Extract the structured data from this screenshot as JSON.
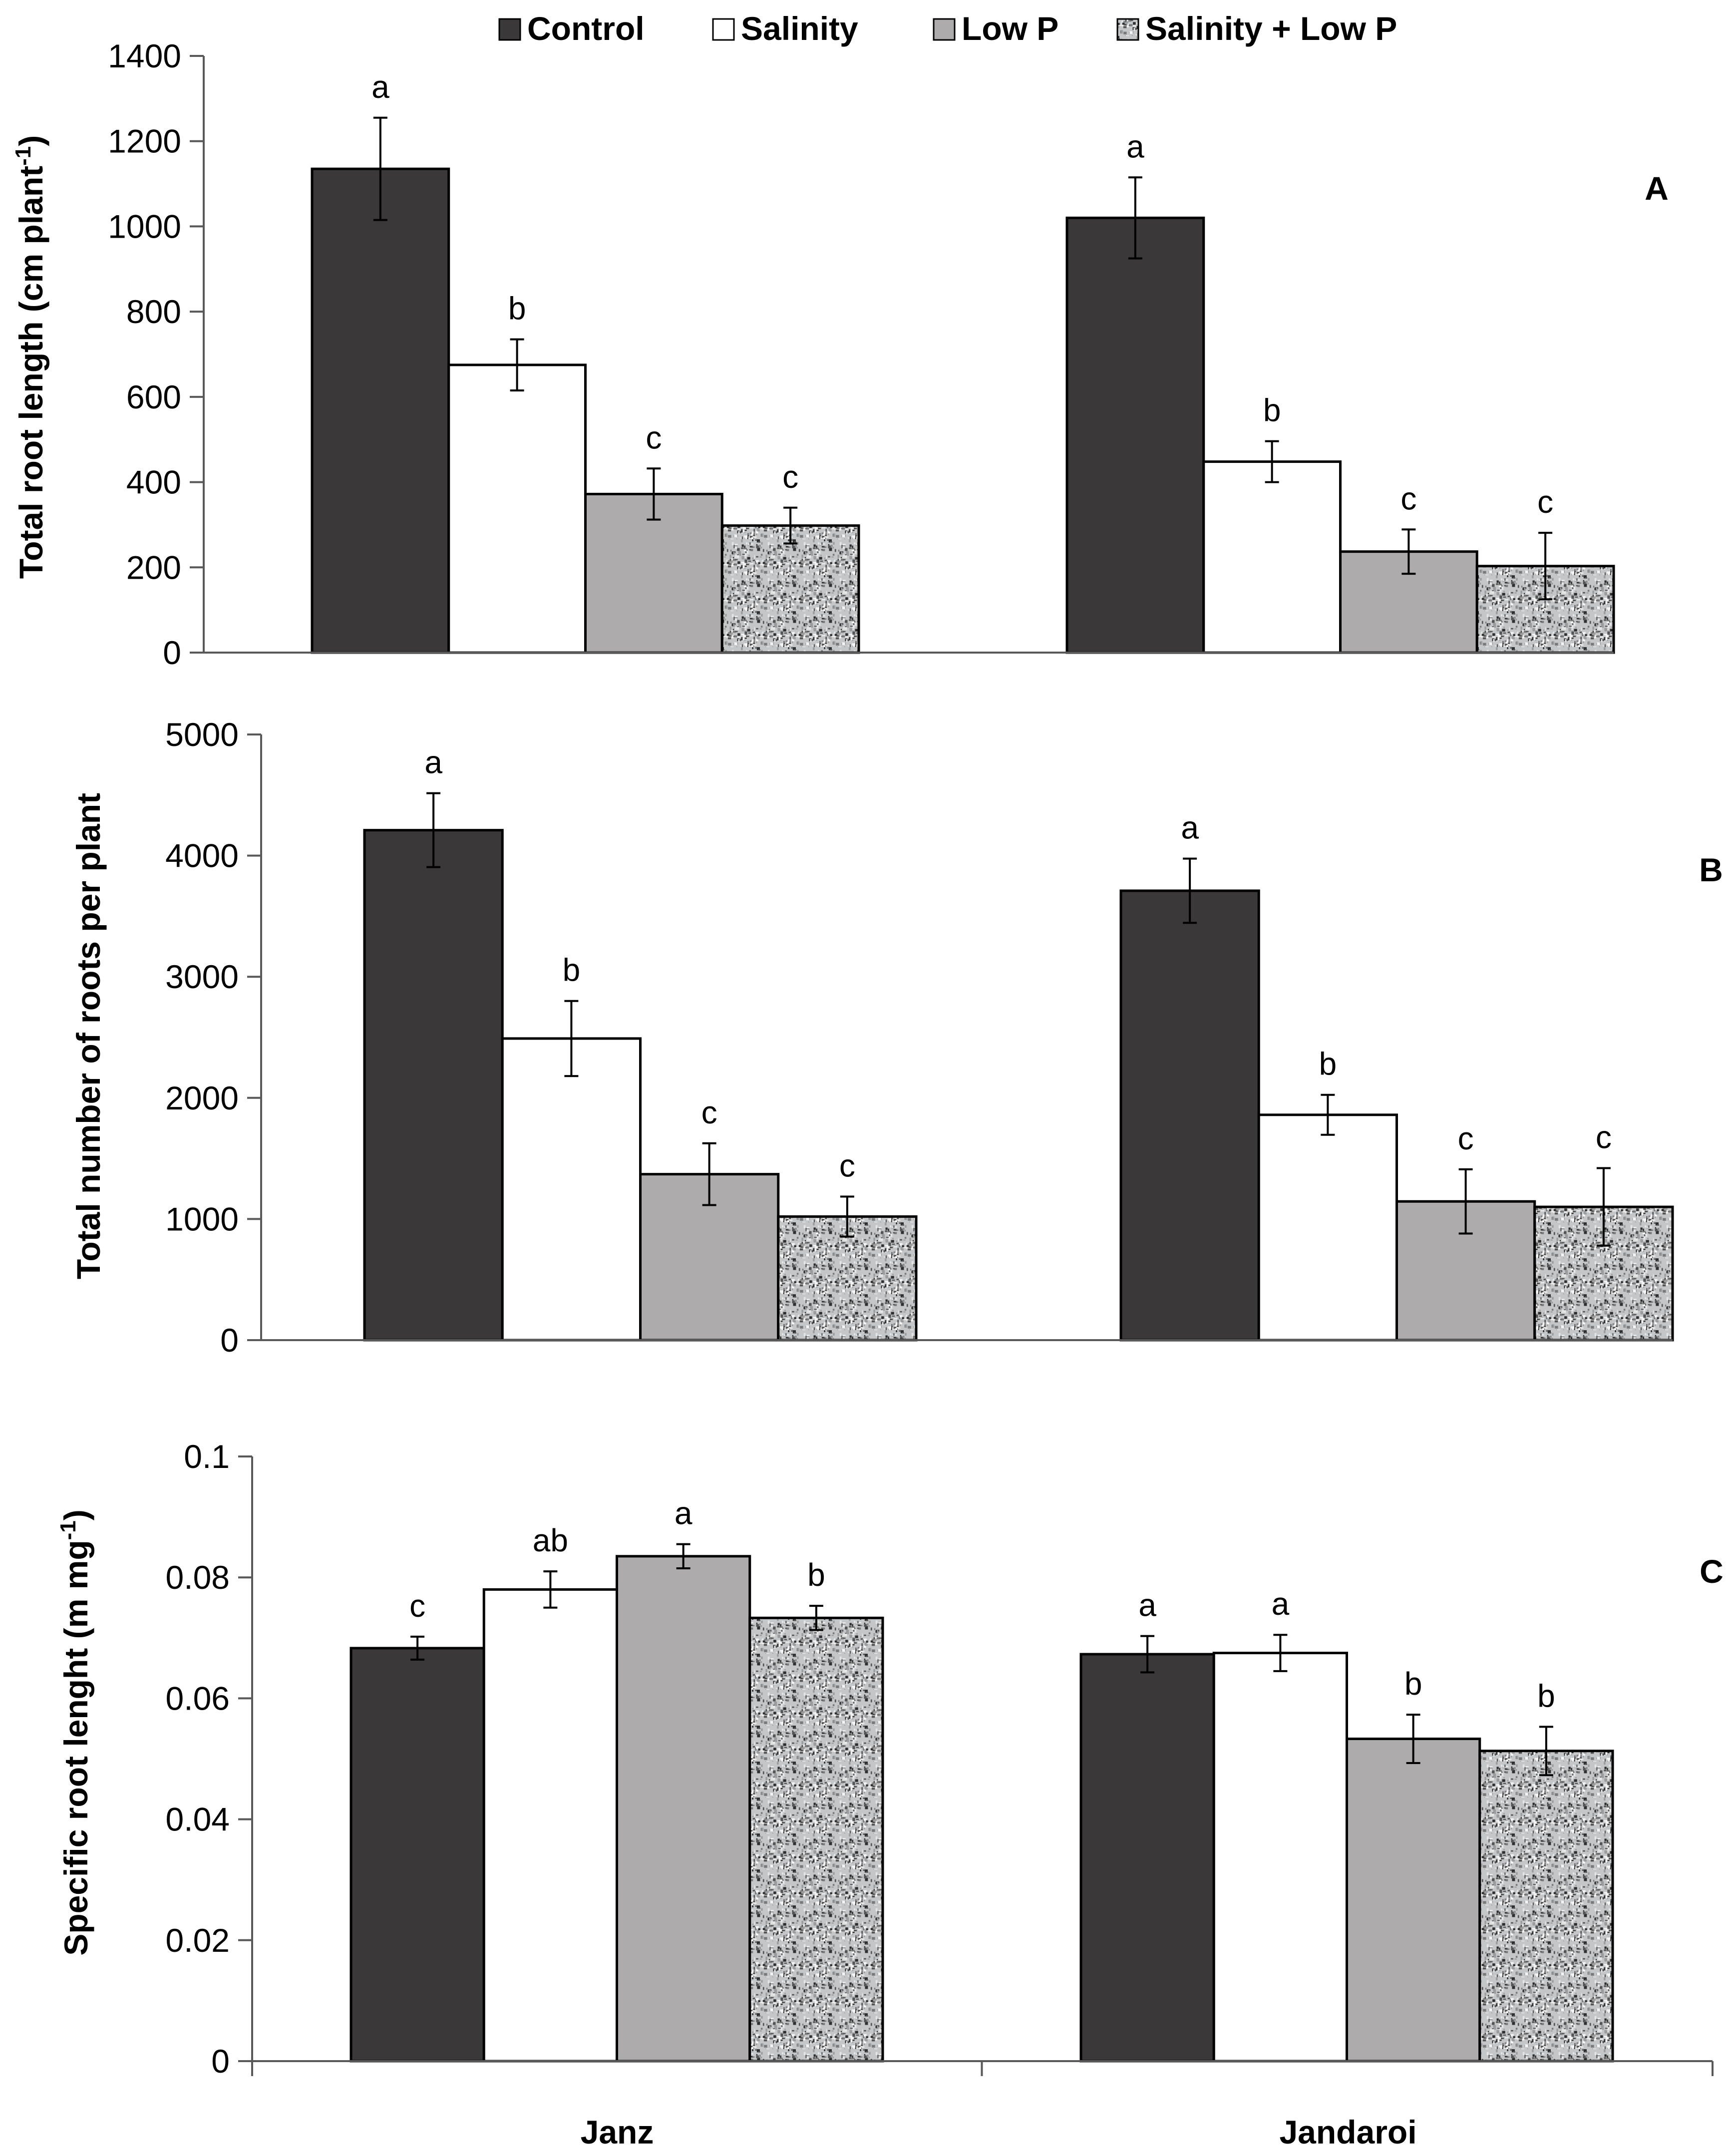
{
  "legend": [
    "Control",
    "Salinity",
    "Low P",
    "Salinity + Low P"
  ],
  "colors": {
    "control": "#3a3838",
    "salinity": "#ffffff",
    "lowp": "#adabab",
    "combined_base": "#c4c6c8",
    "stroke": "#000000"
  },
  "chart_data": [
    {
      "type": "bar",
      "panel": "A",
      "ylabel": "Total root length (cm plant",
      "ylabel_sup": "-1",
      "ylabel_tail": ")",
      "categories": [
        "Janz",
        "Jandaroi"
      ],
      "ylim": [
        0,
        1400
      ],
      "yticks": [
        0,
        200,
        400,
        600,
        800,
        1000,
        1200,
        1400
      ],
      "tick_labels": [
        "0",
        "200",
        "400",
        "600",
        "800",
        "1000",
        "1200",
        "1400"
      ],
      "series": [
        {
          "name": "Control",
          "values": [
            1135,
            1020
          ],
          "errors": [
            120,
            95
          ],
          "letters": [
            "a",
            "a"
          ]
        },
        {
          "name": "Salinity",
          "values": [
            675,
            448
          ],
          "errors": [
            60,
            48
          ],
          "letters": [
            "b",
            "b"
          ]
        },
        {
          "name": "Low P",
          "values": [
            372,
            237
          ],
          "errors": [
            60,
            52
          ],
          "letters": [
            "c",
            "c"
          ]
        },
        {
          "name": "Salinity + Low P",
          "values": [
            298,
            203
          ],
          "errors": [
            42,
            78
          ],
          "letters": [
            "c",
            "c"
          ]
        }
      ]
    },
    {
      "type": "bar",
      "panel": "B",
      "ylabel": "Total number of roots per plant",
      "categories": [
        "Janz",
        "Jandaroi"
      ],
      "ylim": [
        0,
        5000
      ],
      "yticks": [
        0,
        1000,
        2000,
        3000,
        4000,
        5000
      ],
      "tick_labels": [
        "0",
        "1000",
        "2000",
        "3000",
        "4000",
        "5000"
      ],
      "series": [
        {
          "name": "Control",
          "values": [
            4210,
            3710
          ],
          "errors": [
            305,
            265
          ],
          "letters": [
            "a",
            "a"
          ]
        },
        {
          "name": "Salinity",
          "values": [
            2490,
            1860
          ],
          "errors": [
            310,
            165
          ],
          "letters": [
            "b",
            "b"
          ]
        },
        {
          "name": "Low P",
          "values": [
            1370,
            1145
          ],
          "errors": [
            255,
            265
          ],
          "letters": [
            "c",
            "c"
          ]
        },
        {
          "name": "Salinity + Low P",
          "values": [
            1020,
            1100
          ],
          "errors": [
            165,
            320
          ],
          "letters": [
            "c",
            "c"
          ]
        }
      ]
    },
    {
      "type": "bar",
      "panel": "C",
      "ylabel": "Specific root lenght (m mg",
      "ylabel_sup": "-1",
      "ylabel_tail": ")",
      "categories": [
        "Janz",
        "Jandaroi"
      ],
      "ylim": [
        0,
        0.1
      ],
      "yticks": [
        0,
        0.02,
        0.04,
        0.06,
        0.08,
        0.1
      ],
      "tick_labels": [
        "0",
        "0.02",
        "0.04",
        "0.06",
        "0.08",
        "0.1"
      ],
      "series": [
        {
          "name": "Control",
          "values": [
            0.0683,
            0.0673
          ],
          "errors": [
            0.0019,
            0.003
          ],
          "letters": [
            "c",
            "a"
          ]
        },
        {
          "name": "Salinity",
          "values": [
            0.078,
            0.0675
          ],
          "errors": [
            0.003,
            0.003
          ],
          "letters": [
            "ab",
            "a"
          ]
        },
        {
          "name": "Low P",
          "values": [
            0.0835,
            0.0533
          ],
          "errors": [
            0.002,
            0.004
          ],
          "letters": [
            "a",
            "b"
          ]
        },
        {
          "name": "Salinity + Low P",
          "values": [
            0.0733,
            0.0513
          ],
          "errors": [
            0.002,
            0.004
          ],
          "letters": [
            "b",
            "b"
          ]
        }
      ]
    }
  ]
}
